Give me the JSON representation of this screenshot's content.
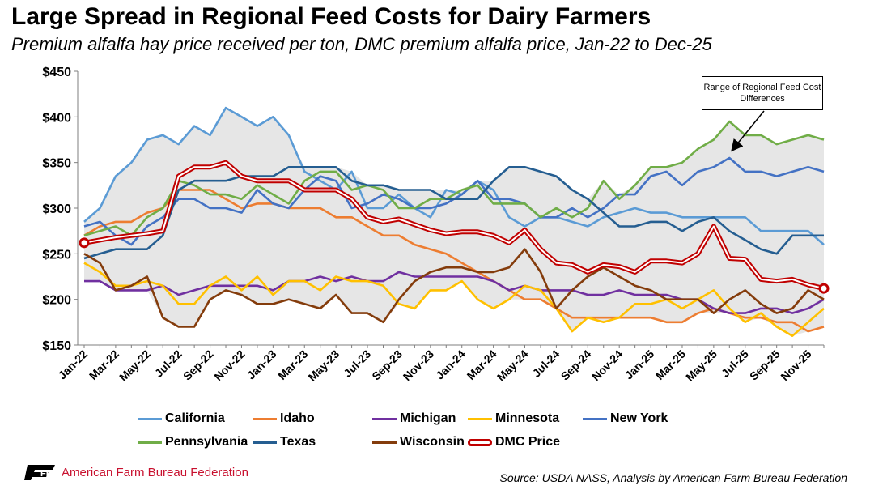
{
  "chart_data": {
    "type": "line",
    "title": "Large Spread in Regional Feed Costs for Dairy Farmers",
    "subtitle": "Premium alfalfa hay price received per ton, DMC premium alfalfa price, Jan-22 to Dec-25",
    "xlabel": "",
    "ylabel": "",
    "ylim": [
      150,
      450
    ],
    "yticks": [
      "$150",
      "$200",
      "$250",
      "$300",
      "$350",
      "$400",
      "$450"
    ],
    "grid": false,
    "legend": "bottom",
    "x_tick_labels": [
      "Jan-22",
      "Mar-22",
      "May-22",
      "Jul-22",
      "Sep-22",
      "Nov-22",
      "Jan-23",
      "Mar-23",
      "May-23",
      "Jul-23",
      "Sep-23",
      "Nov-23",
      "Jan-24",
      "Mar-24",
      "May-24",
      "Jul-24",
      "Sep-24",
      "Nov-24",
      "Jan-25",
      "Mar-25",
      "May-25",
      "Jul-25",
      "Sep-25",
      "Nov-25"
    ],
    "months": 48,
    "shaded_range": true,
    "annotation": "Range of Regional Feed Cost Differences",
    "series": [
      {
        "name": "California",
        "color": "#5b9bd5",
        "values": [
          285,
          300,
          335,
          350,
          375,
          380,
          370,
          390,
          380,
          410,
          400,
          390,
          400,
          380,
          340,
          330,
          320,
          340,
          300,
          300,
          315,
          300,
          290,
          320,
          315,
          330,
          320,
          290,
          280,
          290,
          290,
          285,
          280,
          290,
          295,
          300,
          295,
          295,
          290,
          290,
          290,
          290,
          290,
          275,
          275,
          275,
          275,
          260
        ]
      },
      {
        "name": "Idaho",
        "color": "#ed7d31",
        "values": [
          270,
          280,
          285,
          285,
          295,
          300,
          320,
          320,
          320,
          310,
          300,
          305,
          305,
          300,
          300,
          300,
          290,
          290,
          280,
          270,
          270,
          260,
          255,
          250,
          240,
          230,
          220,
          210,
          200,
          200,
          190,
          180,
          180,
          180,
          180,
          180,
          180,
          175,
          175,
          185,
          190,
          185,
          180,
          180,
          175,
          175,
          165,
          170
        ]
      },
      {
        "name": "Michigan",
        "color": "#7030a0",
        "values": [
          220,
          220,
          210,
          210,
          210,
          215,
          205,
          210,
          215,
          215,
          215,
          215,
          210,
          220,
          220,
          225,
          220,
          225,
          220,
          220,
          230,
          225,
          225,
          225,
          225,
          225,
          220,
          210,
          215,
          210,
          210,
          210,
          205,
          205,
          210,
          205,
          205,
          205,
          200,
          200,
          190,
          185,
          185,
          190,
          190,
          185,
          190,
          200
        ]
      },
      {
        "name": "Minnesota",
        "color": "#ffc000",
        "values": [
          240,
          230,
          215,
          215,
          220,
          215,
          195,
          195,
          215,
          225,
          210,
          225,
          205,
          220,
          220,
          210,
          225,
          220,
          220,
          215,
          195,
          190,
          210,
          210,
          220,
          200,
          190,
          200,
          215,
          210,
          190,
          165,
          180,
          175,
          180,
          195,
          195,
          200,
          190,
          200,
          210,
          190,
          175,
          185,
          170,
          160,
          175,
          190
        ]
      },
      {
        "name": "New York",
        "color": "#4472c4",
        "values": [
          280,
          285,
          270,
          260,
          280,
          290,
          310,
          310,
          300,
          300,
          295,
          320,
          305,
          300,
          320,
          335,
          330,
          300,
          305,
          315,
          310,
          300,
          300,
          305,
          315,
          330,
          310,
          310,
          305,
          290,
          290,
          300,
          290,
          300,
          315,
          315,
          335,
          340,
          325,
          340,
          345,
          355,
          340,
          340,
          335,
          340,
          345,
          340
        ]
      },
      {
        "name": "Pennsylvania",
        "color": "#70ad47",
        "values": [
          270,
          275,
          280,
          270,
          290,
          300,
          330,
          325,
          315,
          315,
          310,
          325,
          315,
          305,
          330,
          340,
          340,
          320,
          325,
          320,
          300,
          300,
          310,
          310,
          320,
          325,
          305,
          305,
          305,
          290,
          300,
          290,
          300,
          330,
          310,
          325,
          345,
          345,
          350,
          365,
          375,
          395,
          380,
          380,
          370,
          375,
          380,
          375
        ]
      },
      {
        "name": "Texas",
        "color": "#255e91",
        "values": [
          245,
          250,
          255,
          255,
          255,
          270,
          320,
          330,
          330,
          330,
          335,
          335,
          335,
          345,
          345,
          345,
          345,
          330,
          325,
          325,
          320,
          320,
          320,
          310,
          310,
          310,
          330,
          345,
          345,
          340,
          335,
          320,
          310,
          295,
          280,
          280,
          285,
          285,
          275,
          285,
          290,
          275,
          265,
          255,
          250,
          270,
          270,
          270
        ]
      },
      {
        "name": "Wisconsin",
        "color": "#843c0c",
        "values": [
          250,
          240,
          210,
          215,
          225,
          180,
          170,
          170,
          200,
          210,
          205,
          195,
          195,
          200,
          195,
          190,
          205,
          185,
          185,
          175,
          200,
          220,
          230,
          235,
          235,
          230,
          230,
          235,
          255,
          230,
          190,
          210,
          225,
          235,
          225,
          215,
          210,
          200,
          200,
          200,
          185,
          200,
          210,
          195,
          185,
          190,
          210,
          200
        ]
      },
      {
        "name": "DMC Price",
        "color": "#c00000",
        "values": [
          262,
          265,
          268,
          270,
          272,
          275,
          335,
          345,
          345,
          350,
          335,
          330,
          330,
          330,
          320,
          320,
          320,
          310,
          290,
          285,
          288,
          282,
          276,
          272,
          274,
          274,
          270,
          262,
          276,
          255,
          240,
          238,
          230,
          238,
          236,
          230,
          242,
          242,
          240,
          250,
          280,
          245,
          244,
          222,
          220,
          222,
          216,
          212
        ]
      }
    ]
  },
  "legend_items": [
    "California",
    "Idaho",
    "Michigan",
    "Minnesota",
    "New York",
    "Pennsylvania",
    "Texas",
    "Wisconsin",
    "DMC Price"
  ],
  "logo": {
    "text": "American Farm Bureau Federation",
    "mark": "FB"
  },
  "source": "Source: USDA NASS, Analysis by American Farm Bureau Federation"
}
